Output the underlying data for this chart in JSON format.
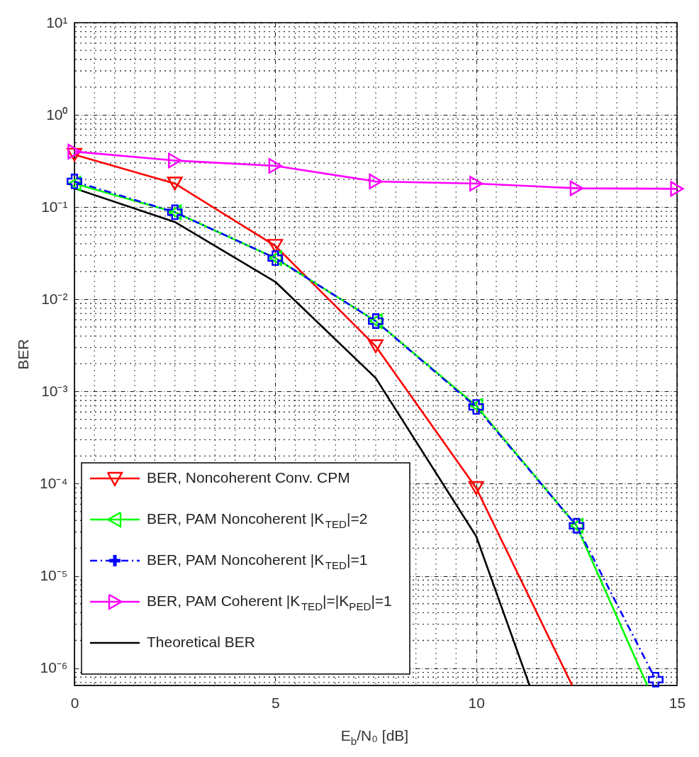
{
  "chart_data": {
    "type": "line",
    "xlabel": "E$_{b}$/N₀ [dB]",
    "ylabel": "BER",
    "xlim": [
      0,
      15
    ],
    "xticks": [
      0,
      5,
      10,
      15
    ],
    "ylim": [
      6.5e-07,
      10
    ],
    "yticks": [
      {
        "value": 1e-06,
        "label": "10⁻⁶"
      },
      {
        "value": 1e-05,
        "label": "10⁻⁵"
      },
      {
        "value": 0.0001,
        "label": "10⁻⁴"
      },
      {
        "value": 0.001,
        "label": "10⁻³"
      },
      {
        "value": 0.01,
        "label": "10⁻²"
      },
      {
        "value": 0.1,
        "label": "10⁻¹"
      },
      {
        "value": 1,
        "label": "10⁰"
      },
      {
        "value": 10,
        "label": "10¹"
      }
    ],
    "log": true,
    "grid": true,
    "legend": "bottom left",
    "series": [
      {
        "name": "BER, Noncoherent Conv. CPM",
        "color": "#ff0000",
        "marker": "triangle-down",
        "line_style": "solid",
        "x": [
          0,
          2.5,
          5,
          7.5,
          10,
          12.39
        ],
        "values": [
          0.37,
          0.18,
          0.038,
          0.0031,
          9e-05,
          6.5e-07
        ]
      },
      {
        "name": "BER, PAM Noncoherent |K$_{TED}$|=2",
        "color": "#00ff00",
        "marker": "triangle-left",
        "line_style": "solid",
        "x": [
          0,
          2.5,
          5,
          7.5,
          10,
          12.5,
          14.26
        ],
        "values": [
          0.18,
          0.088,
          0.028,
          0.0058,
          0.0007,
          3.5e-05,
          6.5e-07
        ]
      },
      {
        "name": "BER, PAM Noncoherent |K$_{TED}$|=1",
        "color": "#0000ff",
        "marker": "cross",
        "line_style": "dashed",
        "x": [
          0,
          2.5,
          5,
          7.5,
          10,
          12.5,
          14.47
        ],
        "values": [
          0.19,
          0.088,
          0.028,
          0.0058,
          0.00068,
          3.5e-05,
          7.5e-07
        ]
      },
      {
        "name": "BER, PAM Coherent |K$_{TED}$|=|K$_{PED}$|=1",
        "color": "#ff00ff",
        "marker": "triangle-right",
        "line_style": "solid",
        "x": [
          0,
          2.5,
          5,
          7.5,
          10,
          12.5,
          15
        ],
        "values": [
          0.4,
          0.32,
          0.28,
          0.19,
          0.18,
          0.16,
          0.158
        ]
      },
      {
        "name": "Theoretical BER",
        "color": "#000000",
        "marker": "none",
        "line_style": "solid",
        "x": [
          0,
          2.5,
          5,
          7.5,
          10,
          11.33
        ],
        "values": [
          0.16,
          0.069,
          0.0155,
          0.0014,
          2.7e-05,
          6.5e-07
        ]
      }
    ]
  }
}
